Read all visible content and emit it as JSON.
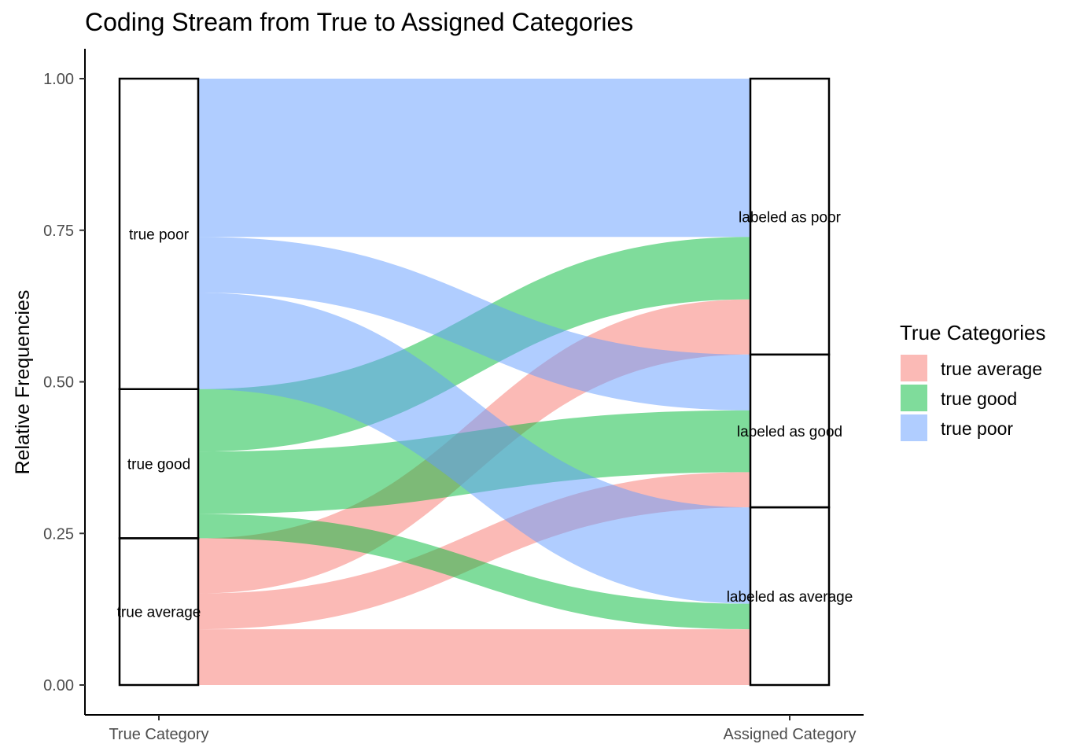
{
  "chart_data": {
    "type": "alluvial",
    "title": "Coding Stream from True to Assigned Categories",
    "xlabel": "",
    "ylabel": "Relative Frequencies",
    "ylim": [
      0,
      1
    ],
    "yticks": [
      "0.00",
      "0.25",
      "0.50",
      "0.75",
      "1.00"
    ],
    "ytick_values": [
      0,
      0.25,
      0.5,
      0.75,
      1.0
    ],
    "axes": [
      "True Category",
      "Assigned Category"
    ],
    "grid": false,
    "legend": {
      "title": "True Categories",
      "position": "right",
      "entries": [
        {
          "name": "true average",
          "color": "#F8766D"
        },
        {
          "name": "true good",
          "color": "#00BA38"
        },
        {
          "name": "true poor",
          "color": "#619CFF"
        }
      ]
    },
    "strata_left": [
      {
        "label": "true average",
        "ymin": 0.0,
        "ymax": 0.242
      },
      {
        "label": "true good",
        "ymin": 0.242,
        "ymax": 0.488
      },
      {
        "label": "true poor",
        "ymin": 0.488,
        "ymax": 1.0
      }
    ],
    "strata_right": [
      {
        "label": "labeled as average",
        "ymin": 0.0,
        "ymax": 0.293
      },
      {
        "label": "labeled as good",
        "ymin": 0.293,
        "ymax": 0.545
      },
      {
        "label": "labeled as poor",
        "ymin": 0.545,
        "ymax": 1.0
      }
    ],
    "flows": [
      {
        "from": "true average",
        "to": "labeled as average",
        "fill": "true average",
        "left": [
          0.0,
          0.092
        ],
        "right": [
          0.0,
          0.092
        ]
      },
      {
        "from": "true average",
        "to": "labeled as good",
        "fill": "true average",
        "left": [
          0.092,
          0.151
        ],
        "right": [
          0.351,
          0.293
        ]
      },
      {
        "from": "true average",
        "to": "labeled as poor",
        "fill": "true average",
        "left": [
          0.151,
          0.242
        ],
        "right": [
          0.545,
          0.636
        ]
      },
      {
        "from": "true good",
        "to": "labeled as average",
        "fill": "true good",
        "left": [
          0.242,
          0.282
        ],
        "right": [
          0.092,
          0.134
        ]
      },
      {
        "from": "true good",
        "to": "labeled as good",
        "fill": "true good",
        "left": [
          0.282,
          0.385
        ],
        "right": [
          0.351,
          0.453
        ]
      },
      {
        "from": "true good",
        "to": "labeled as poor",
        "fill": "true good",
        "left": [
          0.385,
          0.488
        ],
        "right": [
          0.636,
          0.739
        ]
      },
      {
        "from": "true poor",
        "to": "labeled as average",
        "fill": "true poor",
        "left": [
          0.488,
          0.647
        ],
        "right": [
          0.134,
          0.293
        ]
      },
      {
        "from": "true poor",
        "to": "labeled as good",
        "fill": "true poor",
        "left": [
          0.647,
          0.739
        ],
        "right": [
          0.453,
          0.545
        ]
      },
      {
        "from": "true poor",
        "to": "labeled as poor",
        "fill": "true poor",
        "left": [
          0.739,
          1.0
        ],
        "right": [
          0.739,
          1.0
        ]
      }
    ]
  }
}
